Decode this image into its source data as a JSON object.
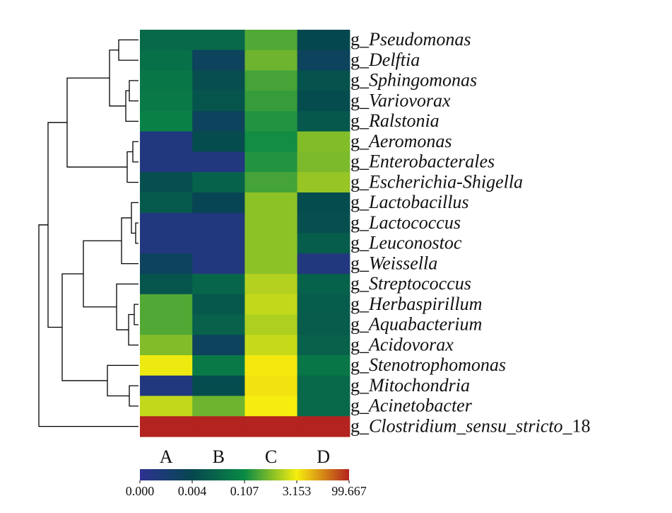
{
  "chart_data": {
    "type": "heatmap",
    "columns": [
      "A",
      "B",
      "C",
      "D"
    ],
    "rows": [
      {
        "prefix": "g_",
        "name": "Pseudomonas",
        "suffix": "",
        "values": [
          0.02,
          0.02,
          0.3,
          0.004
        ]
      },
      {
        "prefix": "g_",
        "name": "Delftia",
        "suffix": "",
        "values": [
          0.03,
          0.002,
          0.45,
          0.002
        ]
      },
      {
        "prefix": "g_",
        "name": "Sphingomonas",
        "suffix": "",
        "values": [
          0.04,
          0.006,
          0.25,
          0.007
        ]
      },
      {
        "prefix": "g_",
        "name": "Variovorax",
        "suffix": "",
        "values": [
          0.05,
          0.008,
          0.2,
          0.005
        ]
      },
      {
        "prefix": "g_",
        "name": "Ralstonia",
        "suffix": "",
        "values": [
          0.07,
          0.002,
          0.15,
          0.009
        ]
      },
      {
        "prefix": "g_",
        "name": "Aeromonas",
        "suffix": "",
        "values": [
          0.0003,
          0.005,
          0.12,
          0.6
        ]
      },
      {
        "prefix": "g_",
        "name": "Enterobacterales",
        "suffix": "",
        "values": [
          0.0003,
          0.0003,
          0.15,
          0.55
        ]
      },
      {
        "prefix": "g_",
        "name": "Escherichia-Shigella",
        "suffix": "",
        "values": [
          0.006,
          0.015,
          0.25,
          0.8
        ]
      },
      {
        "prefix": "g_",
        "name": "Lactobacillus",
        "suffix": "",
        "values": [
          0.01,
          0.003,
          0.7,
          0.005
        ]
      },
      {
        "prefix": "g_",
        "name": "Lactococcus",
        "suffix": "",
        "values": [
          0.0003,
          0.0003,
          0.7,
          0.006
        ]
      },
      {
        "prefix": "g_",
        "name": "Leuconostoc",
        "suffix": "",
        "values": [
          0.0003,
          0.0003,
          0.7,
          0.012
        ]
      },
      {
        "prefix": "g_",
        "name": "Weissella",
        "suffix": "",
        "values": [
          0.002,
          0.0003,
          0.7,
          0.0003
        ]
      },
      {
        "prefix": "g_",
        "name": "Streptococcus",
        "suffix": "",
        "values": [
          0.008,
          0.018,
          1.2,
          0.015
        ]
      },
      {
        "prefix": "g_",
        "name": "Herbaspirillum",
        "suffix": "",
        "values": [
          0.3,
          0.009,
          1.5,
          0.012
        ]
      },
      {
        "prefix": "g_",
        "name": "Aquabacterium",
        "suffix": "",
        "values": [
          0.3,
          0.014,
          1.1,
          0.011
        ]
      },
      {
        "prefix": "g_",
        "name": "Acidovorax",
        "suffix": "",
        "values": [
          0.6,
          0.002,
          1.6,
          0.014
        ]
      },
      {
        "prefix": "g_",
        "name": "Stenotrophomonas",
        "suffix": "",
        "values": [
          2.8,
          0.05,
          3.5,
          0.04
        ]
      },
      {
        "prefix": "g_",
        "name": "Mitochondria",
        "suffix": "",
        "values": [
          0.0003,
          0.005,
          3.8,
          0.02
        ]
      },
      {
        "prefix": "g_",
        "name": "Acinetobacter",
        "suffix": "",
        "values": [
          1.5,
          0.45,
          3.2,
          0.02
        ]
      },
      {
        "prefix": "g_",
        "name": "Clostridium_sensu_stricto",
        "suffix": "_18",
        "values": [
          99.667,
          99.667,
          99.667,
          99.667
        ]
      }
    ],
    "colorbar": {
      "ticks": [
        "0.000",
        "0.004",
        "0.107",
        "3.153",
        "99.667"
      ],
      "colors": [
        "#2e3192",
        "#05474f",
        "#0a8a45",
        "#f6ee0f",
        "#b3231f"
      ]
    },
    "dendrogram": "row"
  }
}
